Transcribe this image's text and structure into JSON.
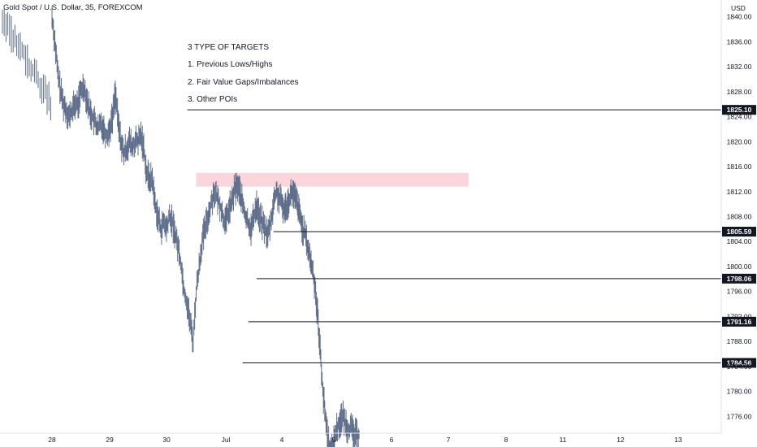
{
  "header": {
    "symbol_title": "Gold Spot / U.S. Dollar, 35, FOREXCOM"
  },
  "axis": {
    "currency": "USD"
  },
  "annotation": {
    "lines": [
      "3 TYPE OF TARGETS",
      "1. Previous Lows/Highs",
      "2. Fair Value Gaps/Imbalances",
      "3. Other POIs"
    ]
  },
  "colors": {
    "candle": "#5d6c8a",
    "level_line": "#131722",
    "imbalance": "#f8c8d0",
    "label_bg": "#131722",
    "axis_text": "#131722"
  },
  "chart_data": {
    "type": "line",
    "title": "Gold Spot / U.S. Dollar, 35, FOREXCOM",
    "xlabel": "",
    "ylabel": "USD",
    "ylim": [
      1773.3,
      1842.7
    ],
    "y_ticks": [
      1840,
      1836,
      1832,
      1828,
      1824,
      1820,
      1816,
      1812,
      1808,
      1804,
      1800,
      1796,
      1792,
      1788,
      1784,
      1780,
      1776
    ],
    "y_tick_labels": [
      "1840.00",
      "1836.00",
      "1832.00",
      "1828.00",
      "1824.00",
      "1820.00",
      "1816.00",
      "1812.00",
      "1808.00",
      "1804.00",
      "1800.00",
      "1796.00",
      "1792.00",
      "1788.00",
      "1784.00",
      "1780.00",
      "1776.00"
    ],
    "x_ticks": [
      "28",
      "29",
      "30",
      "Jul",
      "4",
      "5",
      "6",
      "7",
      "8",
      "11",
      "12",
      "13"
    ],
    "grid": false,
    "levels": [
      {
        "value": 1825.1,
        "label": "1825.10",
        "start_day": 2.35
      },
      {
        "value": 1805.59,
        "label": "1805.59",
        "start_day": 3.85
      },
      {
        "value": 1798.06,
        "label": "1798.06",
        "start_day": 3.55
      },
      {
        "value": 1791.16,
        "label": "1791.16",
        "start_day": 3.4
      },
      {
        "value": 1784.56,
        "label": "1784.56",
        "start_day": 3.3
      }
    ],
    "imbalance_zone": {
      "from": 1812.8,
      "to": 1815.0,
      "start_day": 2.5,
      "end_day": 7.35
    },
    "series": [
      {
        "x": [
          0,
          0.05,
          0.1,
          0.15,
          0.2,
          0.25,
          0.3,
          0.35,
          0.4,
          0.45,
          0.5,
          0.55,
          0.6,
          0.65,
          0.7,
          0.75,
          0.8,
          0.85,
          0.9,
          0.95,
          1.0,
          1.05,
          1.1,
          1.15,
          1.2,
          1.25,
          1.3,
          1.35,
          1.4,
          1.45,
          1.5,
          1.55,
          1.6,
          1.65,
          1.7,
          1.75,
          1.8,
          1.85,
          1.9,
          1.95,
          2.0,
          2.05,
          2.1,
          2.15,
          2.2,
          2.25,
          2.3,
          2.35,
          2.4,
          2.45,
          2.5,
          2.55,
          2.6,
          2.65,
          2.7,
          2.75,
          2.8,
          2.85,
          2.9,
          2.95,
          3.0,
          3.05,
          3.1,
          3.15,
          3.2,
          3.25,
          3.3,
          3.35,
          3.4,
          3.45,
          3.5,
          3.55,
          3.6,
          3.65,
          3.7,
          3.75,
          3.8,
          3.85,
          3.9,
          3.95,
          4.0,
          4.05,
          4.1,
          4.15,
          4.2,
          4.25,
          4.3,
          4.35,
          4.4,
          4.45,
          4.5,
          4.55,
          4.6,
          4.65,
          4.7,
          4.75,
          4.8,
          4.85,
          4.9,
          4.95,
          5.0,
          5.05,
          5.1,
          5.15,
          5.2,
          5.25,
          5.3,
          5.35,
          5.4,
          5.45
        ],
        "values": [
          1840,
          1836,
          1831,
          1828,
          1826,
          1825,
          1824,
          1825,
          1826,
          1826,
          1828,
          1829,
          1827,
          1825,
          1824,
          1823,
          1822,
          1823,
          1822,
          1821,
          1822,
          1824,
          1828,
          1823,
          1820,
          1818,
          1819,
          1820,
          1819,
          1820,
          1820,
          1821,
          1819,
          1815,
          1814,
          1814,
          1810,
          1808,
          1806,
          1807,
          1806,
          1808,
          1807,
          1805,
          1803,
          1800,
          1796,
          1794,
          1791,
          1788,
          1796,
          1800,
          1804,
          1806,
          1808,
          1810,
          1812,
          1811,
          1810,
          1808,
          1807,
          1809,
          1810,
          1812,
          1813,
          1812,
          1810,
          1808,
          1807,
          1806,
          1808,
          1810,
          1808,
          1807,
          1806,
          1805,
          1807,
          1810,
          1812,
          1811,
          1810,
          1809,
          1810,
          1811,
          1812,
          1811,
          1810,
          1808,
          1806,
          1805,
          1803,
          1801,
          1799,
          1796,
          1791,
          1785,
          1779,
          1775,
          1772,
          1770,
          1772,
          1774,
          1775,
          1776,
          1775,
          1774,
          1774,
          1773,
          1773,
          1773
        ],
        "values_note_stripped": null
      }
    ]
  }
}
